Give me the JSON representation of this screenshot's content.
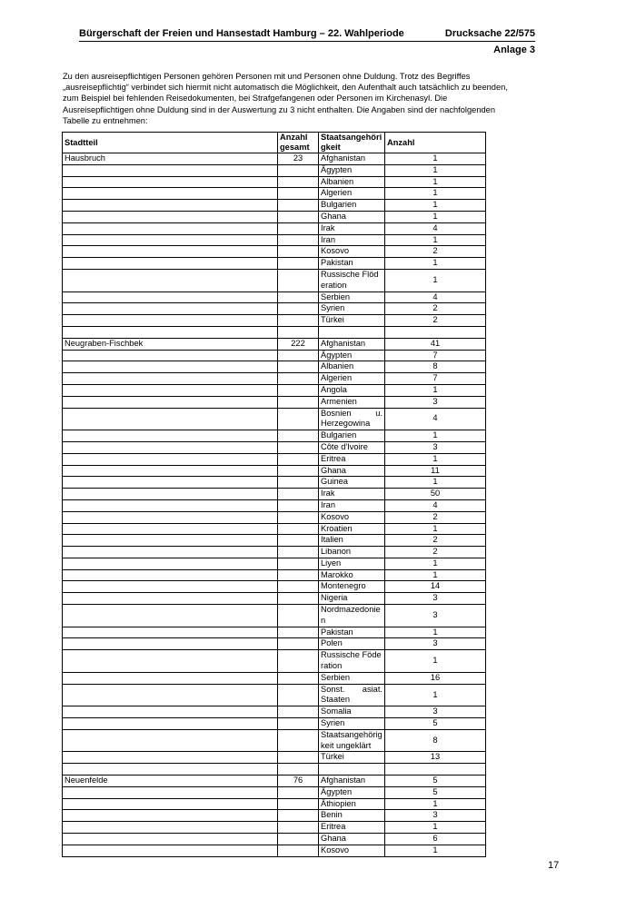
{
  "header": {
    "title": "Bürgerschaft der Freien und Hansestadt Hamburg – 22. Wahlperiode",
    "drucksache": "Drucksache 22/575",
    "anlage": "Anlage 3"
  },
  "intro": "Zu den ausreisepflichtigen Personen gehören Personen mit und Personen ohne Duldung. Trotz des Begriffes „ausreisepflichtig“ verbindet sich hiermit nicht automatisch die Möglichkeit, den Aufenthalt auch tatsächlich zu beenden, zum Beispiel bei fehlenden Reisedokumenten, bei Strafgefangenen oder Personen im Kirchenasyl. Die Ausreisepflichtigen ohne Duldung sind in der Auswertung zu 3 nicht enthalten. Die Angaben sind der nachfolgenden Tabelle zu entnehmen:",
  "table": {
    "headers": [
      "Stadtteil",
      "Anzahl gesamt",
      "Staatsangehörigkeit",
      "Anzahl"
    ],
    "groups": [
      {
        "stadtteil": "Hausbruch",
        "gesamt": "23",
        "rows": [
          [
            "Afghanistan",
            "1"
          ],
          [
            "Ägypten",
            "1"
          ],
          [
            "Albanien",
            "1"
          ],
          [
            "Algerien",
            "1"
          ],
          [
            "Bulgarien",
            "1"
          ],
          [
            "Ghana",
            "1"
          ],
          [
            "Irak",
            "4"
          ],
          [
            "Iran",
            "1"
          ],
          [
            "Kosovo",
            "2"
          ],
          [
            "Pakistan",
            "1"
          ],
          [
            "Russische Flöderation",
            "1"
          ],
          [
            "Serbien",
            "4"
          ],
          [
            "Syrien",
            "2"
          ],
          [
            "Türkei",
            "2"
          ]
        ]
      },
      {
        "stadtteil": "Neugraben-Fischbek",
        "gesamt": "222",
        "rows": [
          [
            "Afghanistan",
            "41"
          ],
          [
            "Ägypten",
            "7"
          ],
          [
            "Albanien",
            "8"
          ],
          [
            "Algerien",
            "7"
          ],
          [
            "Angola",
            "1"
          ],
          [
            "Armenien",
            "3"
          ],
          [
            "Bosnien u. Herzegowina",
            "4"
          ],
          [
            "Bulgarien",
            "1"
          ],
          [
            "Côte d'Ivoire",
            "3"
          ],
          [
            "Eritrea",
            "1"
          ],
          [
            "Ghana",
            "11"
          ],
          [
            "Guinea",
            "1"
          ],
          [
            "Irak",
            "50"
          ],
          [
            "Iran",
            "4"
          ],
          [
            "Kosovo",
            "2"
          ],
          [
            "Kroatien",
            "1"
          ],
          [
            "Italien",
            "2"
          ],
          [
            "Libanon",
            "2"
          ],
          [
            "Liyen",
            "1"
          ],
          [
            "Marokko",
            "1"
          ],
          [
            "Montenegro",
            "14"
          ],
          [
            "Nigeria",
            "3"
          ],
          [
            "Nordmazedonien",
            "3"
          ],
          [
            "Pakistan",
            "1"
          ],
          [
            "Polen",
            "3"
          ],
          [
            "Russische Föderation",
            "1"
          ],
          [
            "Serbien",
            "16"
          ],
          [
            "Sonst. asiat. Staaten",
            "1"
          ],
          [
            "Somalia",
            "3"
          ],
          [
            "Syrien",
            "5"
          ],
          [
            "Staatsangehörigkeit ungeklärt",
            "8"
          ],
          [
            "Türkei",
            "13"
          ]
        ]
      },
      {
        "stadtteil": "Neuenfelde",
        "gesamt": "76",
        "rows": [
          [
            "Afghanistan",
            "5"
          ],
          [
            "Ägypten",
            "5"
          ],
          [
            "Äthiopien",
            "1"
          ],
          [
            "Benin",
            "3"
          ],
          [
            "Eritrea",
            "1"
          ],
          [
            "Ghana",
            "6"
          ],
          [
            "Kosovo",
            "1"
          ]
        ]
      }
    ]
  },
  "page_number": "17"
}
